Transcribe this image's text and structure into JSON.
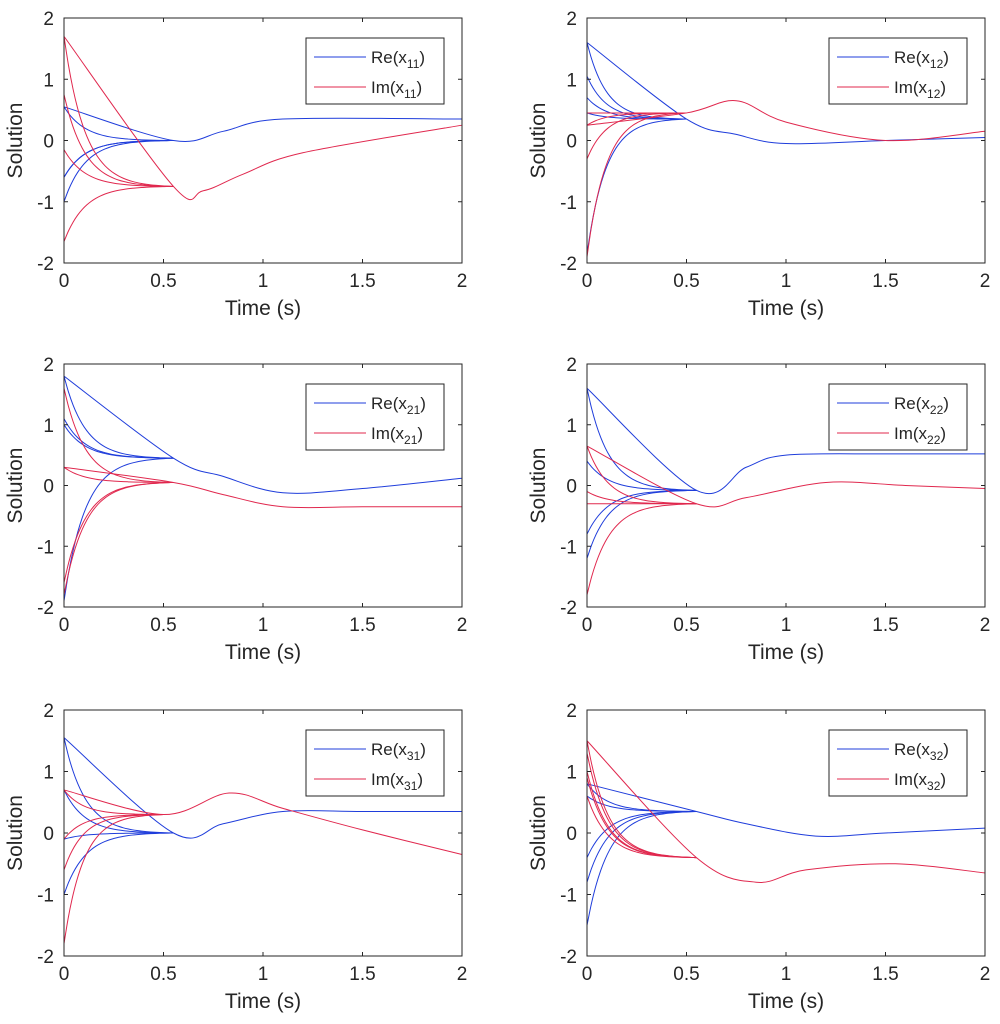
{
  "colors": {
    "real": "#1f3ddb",
    "imag": "#e0284e",
    "axis": "#262626"
  },
  "chart_data": [
    {
      "type": "line",
      "xlabel": "Time (s)",
      "ylabel": "Solution",
      "xlim": [
        0,
        2
      ],
      "ylim": [
        -2,
        2
      ],
      "xticks": [
        "0",
        "0.5",
        "1",
        "1.5",
        "2"
      ],
      "yticks": [
        "-2",
        "-1",
        "0",
        "1",
        "2"
      ],
      "grid": false,
      "legend_position": "top-right",
      "legend": [
        {
          "base": "Re(x",
          "sub": "11",
          "close": ")",
          "kind": "real"
        },
        {
          "base": "Im(x",
          "sub": "11",
          "close": ")",
          "kind": "imag"
        }
      ],
      "series": [
        {
          "kind": "real",
          "x": [
            0,
            0.55,
            0.8,
            1.1,
            2
          ],
          "y": [
            0.55,
            0.0,
            0.15,
            0.35,
            0.35
          ],
          "note_starts": [
            0.55,
            -0.6,
            -0.6,
            -1.0
          ]
        },
        {
          "kind": "imag",
          "x": [
            0,
            0.55,
            0.7,
            0.9,
            1.2,
            2
          ],
          "y": [
            1.7,
            -0.75,
            -0.82,
            -0.55,
            -0.2,
            0.25
          ],
          "note_starts": [
            1.7,
            0.75,
            -0.15,
            -1.65
          ]
        }
      ]
    },
    {
      "type": "line",
      "xlabel": "Time (s)",
      "ylabel": "Solution",
      "xlim": [
        0,
        2
      ],
      "ylim": [
        -2,
        2
      ],
      "xticks": [
        "0",
        "0.5",
        "1",
        "1.5",
        "2"
      ],
      "yticks": [
        "-2",
        "-1",
        "0",
        "1",
        "2"
      ],
      "grid": false,
      "legend_position": "top-right",
      "legend": [
        {
          "base": "Re(x",
          "sub": "12",
          "close": ")",
          "kind": "real"
        },
        {
          "base": "Im(x",
          "sub": "12",
          "close": ")",
          "kind": "imag"
        }
      ],
      "series": [
        {
          "kind": "real",
          "x": [
            0,
            0.5,
            0.75,
            1.0,
            1.5,
            2
          ],
          "y": [
            1.6,
            0.35,
            0.1,
            -0.05,
            0.0,
            0.05
          ],
          "note_starts": [
            1.6,
            1.05,
            0.7,
            0.45,
            -1.85
          ]
        },
        {
          "kind": "imag",
          "x": [
            0,
            0.5,
            0.75,
            1.0,
            1.5,
            2
          ],
          "y": [
            0.25,
            0.45,
            0.65,
            0.3,
            0.0,
            0.15
          ],
          "note_starts": [
            0.45,
            0.25,
            -0.3,
            -1.9
          ]
        }
      ]
    },
    {
      "type": "line",
      "xlabel": "Time (s)",
      "ylabel": "Solution",
      "xlim": [
        0,
        2
      ],
      "ylim": [
        -2,
        2
      ],
      "xticks": [
        "0",
        "0.5",
        "1",
        "1.5",
        "2"
      ],
      "yticks": [
        "-2",
        "-1",
        "0",
        "1",
        "2"
      ],
      "grid": false,
      "legend_position": "top-right",
      "legend": [
        {
          "base": "Re(x",
          "sub": "21",
          "close": ")",
          "kind": "real"
        },
        {
          "base": "Im(x",
          "sub": "21",
          "close": ")",
          "kind": "imag"
        }
      ],
      "series": [
        {
          "kind": "real",
          "x": [
            0,
            0.55,
            0.8,
            1.1,
            1.5,
            2
          ],
          "y": [
            1.8,
            0.45,
            0.15,
            -0.12,
            -0.05,
            0.12
          ],
          "note_starts": [
            1.8,
            1.1,
            1.0,
            -1.9
          ]
        },
        {
          "kind": "imag",
          "x": [
            0,
            0.55,
            0.8,
            1.1,
            1.5,
            2
          ],
          "y": [
            0.3,
            0.05,
            -0.15,
            -0.35,
            -0.35,
            -0.35
          ],
          "note_starts": [
            1.6,
            0.3,
            -1.6,
            -1.8
          ]
        }
      ]
    },
    {
      "type": "line",
      "xlabel": "Time (s)",
      "ylabel": "Solution",
      "xlim": [
        0,
        2
      ],
      "ylim": [
        -2,
        2
      ],
      "xticks": [
        "0",
        "0.5",
        "1",
        "1.5",
        "2"
      ],
      "yticks": [
        "-2",
        "-1",
        "0",
        "1",
        "2"
      ],
      "grid": false,
      "legend_position": "top-right",
      "legend": [
        {
          "base": "Re(x",
          "sub": "22",
          "close": ")",
          "kind": "real"
        },
        {
          "base": "Im(x",
          "sub": "22",
          "close": ")",
          "kind": "imag"
        }
      ],
      "series": [
        {
          "kind": "real",
          "x": [
            0,
            0.55,
            0.8,
            1.0,
            1.5,
            2
          ],
          "y": [
            1.6,
            -0.08,
            0.3,
            0.5,
            0.52,
            0.52
          ],
          "note_starts": [
            1.6,
            0.4,
            -0.8,
            -1.2
          ]
        },
        {
          "kind": "imag",
          "x": [
            0,
            0.55,
            0.8,
            1.2,
            1.6,
            2
          ],
          "y": [
            0.65,
            -0.3,
            -0.2,
            0.05,
            0.0,
            -0.05
          ],
          "note_starts": [
            0.65,
            -0.1,
            -0.3,
            -1.8
          ]
        }
      ]
    },
    {
      "type": "line",
      "xlabel": "Time (s)",
      "ylabel": "Solution",
      "xlim": [
        0,
        2
      ],
      "ylim": [
        -2,
        2
      ],
      "xticks": [
        "0",
        "0.5",
        "1",
        "1.5",
        "2"
      ],
      "yticks": [
        "-2",
        "-1",
        "0",
        "1",
        "2"
      ],
      "grid": false,
      "legend_position": "top-right",
      "legend": [
        {
          "base": "Re(x",
          "sub": "31",
          "close": ")",
          "kind": "real"
        },
        {
          "base": "Im(x",
          "sub": "31",
          "close": ")",
          "kind": "imag"
        }
      ],
      "series": [
        {
          "kind": "real",
          "x": [
            0,
            0.55,
            0.8,
            1.1,
            1.5,
            2
          ],
          "y": [
            1.55,
            0.0,
            0.15,
            0.35,
            0.35,
            0.35
          ],
          "note_starts": [
            1.55,
            0.7,
            -0.1,
            -1.0
          ]
        },
        {
          "kind": "imag",
          "x": [
            0,
            0.5,
            0.83,
            1.1,
            1.5,
            2
          ],
          "y": [
            0.7,
            0.3,
            0.65,
            0.4,
            0.05,
            -0.35
          ],
          "note_starts": [
            0.7,
            -0.1,
            -0.6,
            -1.8
          ]
        }
      ]
    },
    {
      "type": "line",
      "xlabel": "Time (s)",
      "ylabel": "Solution",
      "xlim": [
        0,
        2
      ],
      "ylim": [
        -2,
        2
      ],
      "xticks": [
        "0",
        "0.5",
        "1",
        "1.5",
        "2"
      ],
      "yticks": [
        "-2",
        "-1",
        "0",
        "1",
        "2"
      ],
      "grid": false,
      "legend_position": "top-right",
      "legend": [
        {
          "base": "Re(x",
          "sub": "32",
          "close": ")",
          "kind": "real"
        },
        {
          "base": "Im(x",
          "sub": "32",
          "close": ")",
          "kind": "imag"
        }
      ],
      "series": [
        {
          "kind": "real",
          "x": [
            0,
            0.55,
            0.8,
            1.15,
            1.5,
            2
          ],
          "y": [
            0.8,
            0.35,
            0.15,
            -0.05,
            0.0,
            0.08
          ],
          "note_starts": [
            0.8,
            0.6,
            -0.4,
            -0.8,
            -1.5
          ]
        },
        {
          "kind": "imag",
          "x": [
            0,
            0.55,
            0.85,
            1.1,
            1.55,
            2
          ],
          "y": [
            1.5,
            -0.4,
            -0.8,
            -0.6,
            -0.5,
            -0.65
          ],
          "note_starts": [
            1.5,
            1.3,
            1.0,
            0.9,
            0.6
          ]
        }
      ]
    }
  ]
}
